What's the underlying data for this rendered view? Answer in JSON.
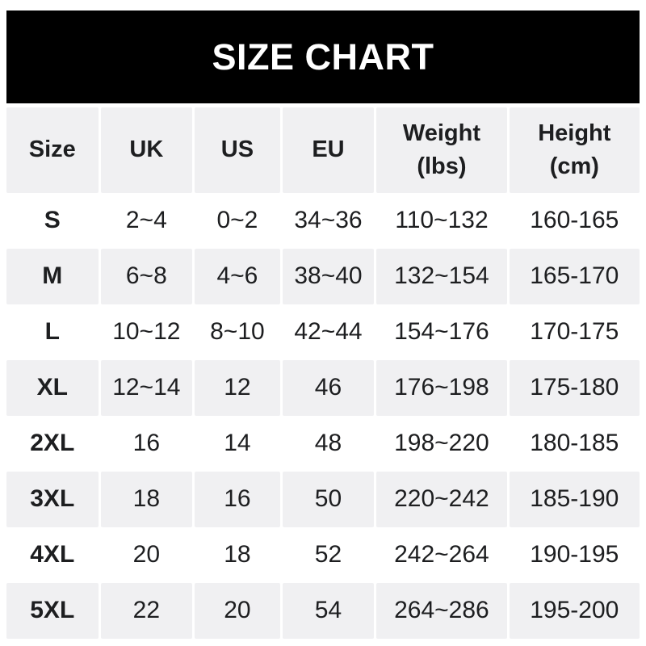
{
  "banner": {
    "title": "SIZE CHART",
    "background_color": "#000000",
    "text_color": "#ffffff"
  },
  "colors": {
    "row_alt_background": "#f0f0f2",
    "row_background": "#ffffff",
    "table_text": "#1d1e20"
  },
  "chart_data": {
    "type": "table",
    "title": "SIZE CHART",
    "columns": [
      {
        "key": "size",
        "label": "Size",
        "sub": ""
      },
      {
        "key": "uk",
        "label": "UK",
        "sub": ""
      },
      {
        "key": "us",
        "label": "US",
        "sub": ""
      },
      {
        "key": "eu",
        "label": "EU",
        "sub": ""
      },
      {
        "key": "weight_lbs",
        "label": "Weight",
        "sub": "(lbs)"
      },
      {
        "key": "height_cm",
        "label": "Height",
        "sub": "(cm)"
      }
    ],
    "rows": [
      {
        "size": "S",
        "uk": "2~4",
        "us": "0~2",
        "eu": "34~36",
        "weight_lbs": "110~132",
        "height_cm": "160-165"
      },
      {
        "size": "M",
        "uk": "6~8",
        "us": "4~6",
        "eu": "38~40",
        "weight_lbs": "132~154",
        "height_cm": "165-170"
      },
      {
        "size": "L",
        "uk": "10~12",
        "us": "8~10",
        "eu": "42~44",
        "weight_lbs": "154~176",
        "height_cm": "170-175"
      },
      {
        "size": "XL",
        "uk": "12~14",
        "us": "12",
        "eu": "46",
        "weight_lbs": "176~198",
        "height_cm": "175-180"
      },
      {
        "size": "2XL",
        "uk": "16",
        "us": "14",
        "eu": "48",
        "weight_lbs": "198~220",
        "height_cm": "180-185"
      },
      {
        "size": "3XL",
        "uk": "18",
        "us": "16",
        "eu": "50",
        "weight_lbs": "220~242",
        "height_cm": "185-190"
      },
      {
        "size": "4XL",
        "uk": "20",
        "us": "18",
        "eu": "52",
        "weight_lbs": "242~264",
        "height_cm": "190-195"
      },
      {
        "size": "5XL",
        "uk": "22",
        "us": "20",
        "eu": "54",
        "weight_lbs": "264~286",
        "height_cm": "195-200"
      }
    ]
  }
}
